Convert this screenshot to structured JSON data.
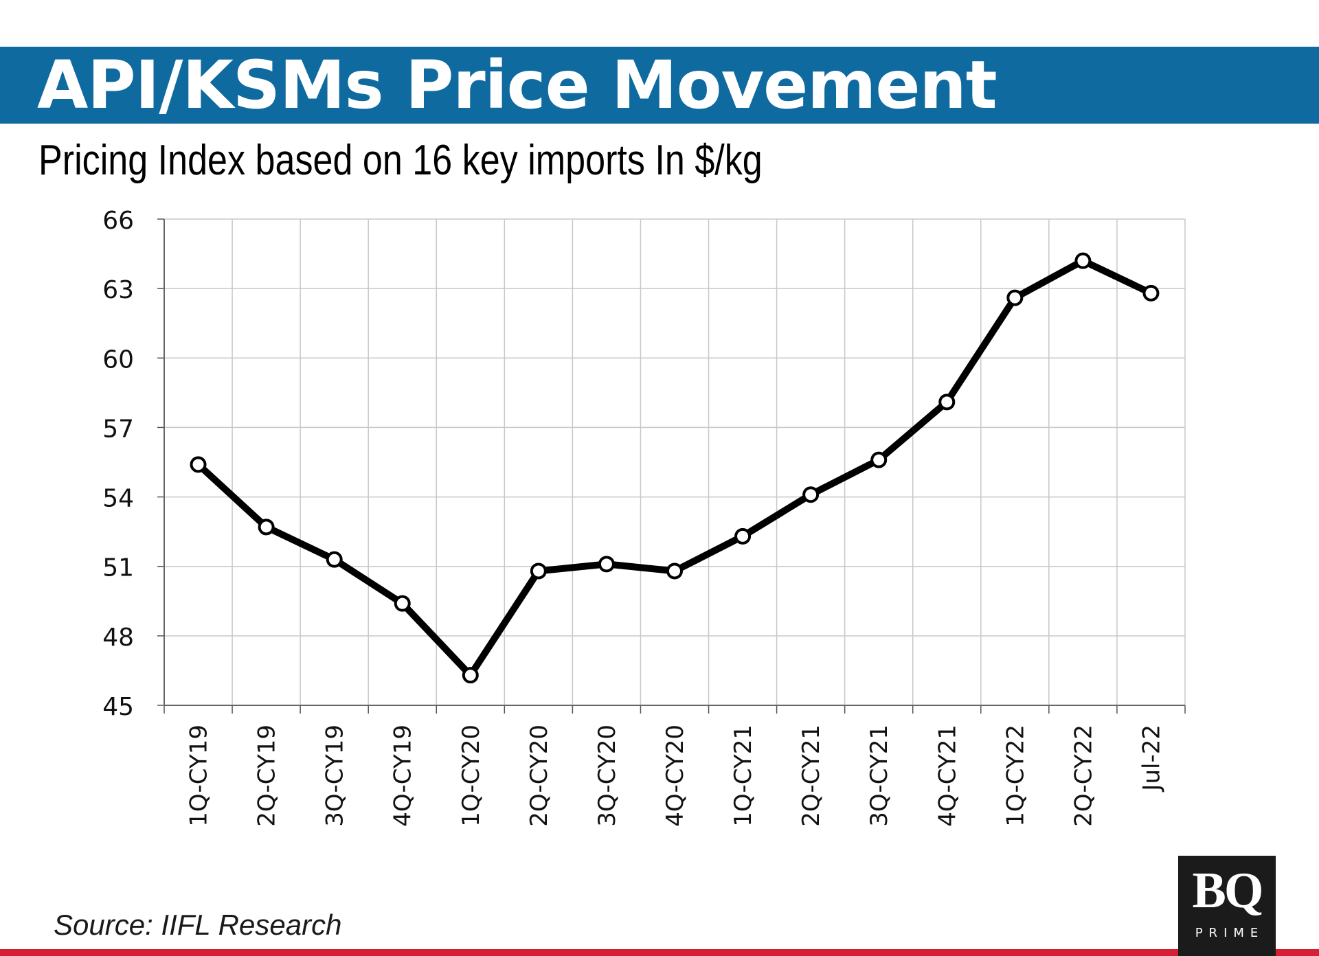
{
  "header": {
    "title": "API/KSMs Price Movement",
    "subtitle": "Pricing Index based on 16 key imports In $/kg"
  },
  "footer": {
    "source": "Source: IIFL Research"
  },
  "logo": {
    "mark": "BQ",
    "sub": "PRIME"
  },
  "colors": {
    "title_bar": "#0f6aa0",
    "accent_line": "#d61f35",
    "series": "#000000",
    "grid": "#c8c8c8"
  },
  "chart_data": {
    "type": "line",
    "title": "API/KSMs Price Movement",
    "subtitle": "Pricing Index based on 16 key imports In $/kg",
    "xlabel": "",
    "ylabel": "",
    "ylim": [
      45,
      66
    ],
    "yticks": [
      45,
      48,
      51,
      54,
      57,
      60,
      63,
      66
    ],
    "grid": true,
    "legend": "none",
    "categories": [
      "1Q-CY19",
      "2Q-CY19",
      "3Q-CY19",
      "4Q-CY19",
      "1Q-CY20",
      "2Q-CY20",
      "3Q-CY20",
      "4Q-CY20",
      "1Q-CY21",
      "2Q-CY21",
      "3Q-CY21",
      "4Q-CY21",
      "1Q-CY22",
      "2Q-CY22",
      "Jul-22"
    ],
    "series": [
      {
        "name": "Pricing Index",
        "values": [
          55.4,
          52.7,
          51.3,
          49.4,
          46.3,
          50.8,
          51.1,
          50.8,
          52.3,
          54.1,
          55.6,
          58.1,
          62.6,
          64.2,
          62.8
        ]
      }
    ]
  }
}
